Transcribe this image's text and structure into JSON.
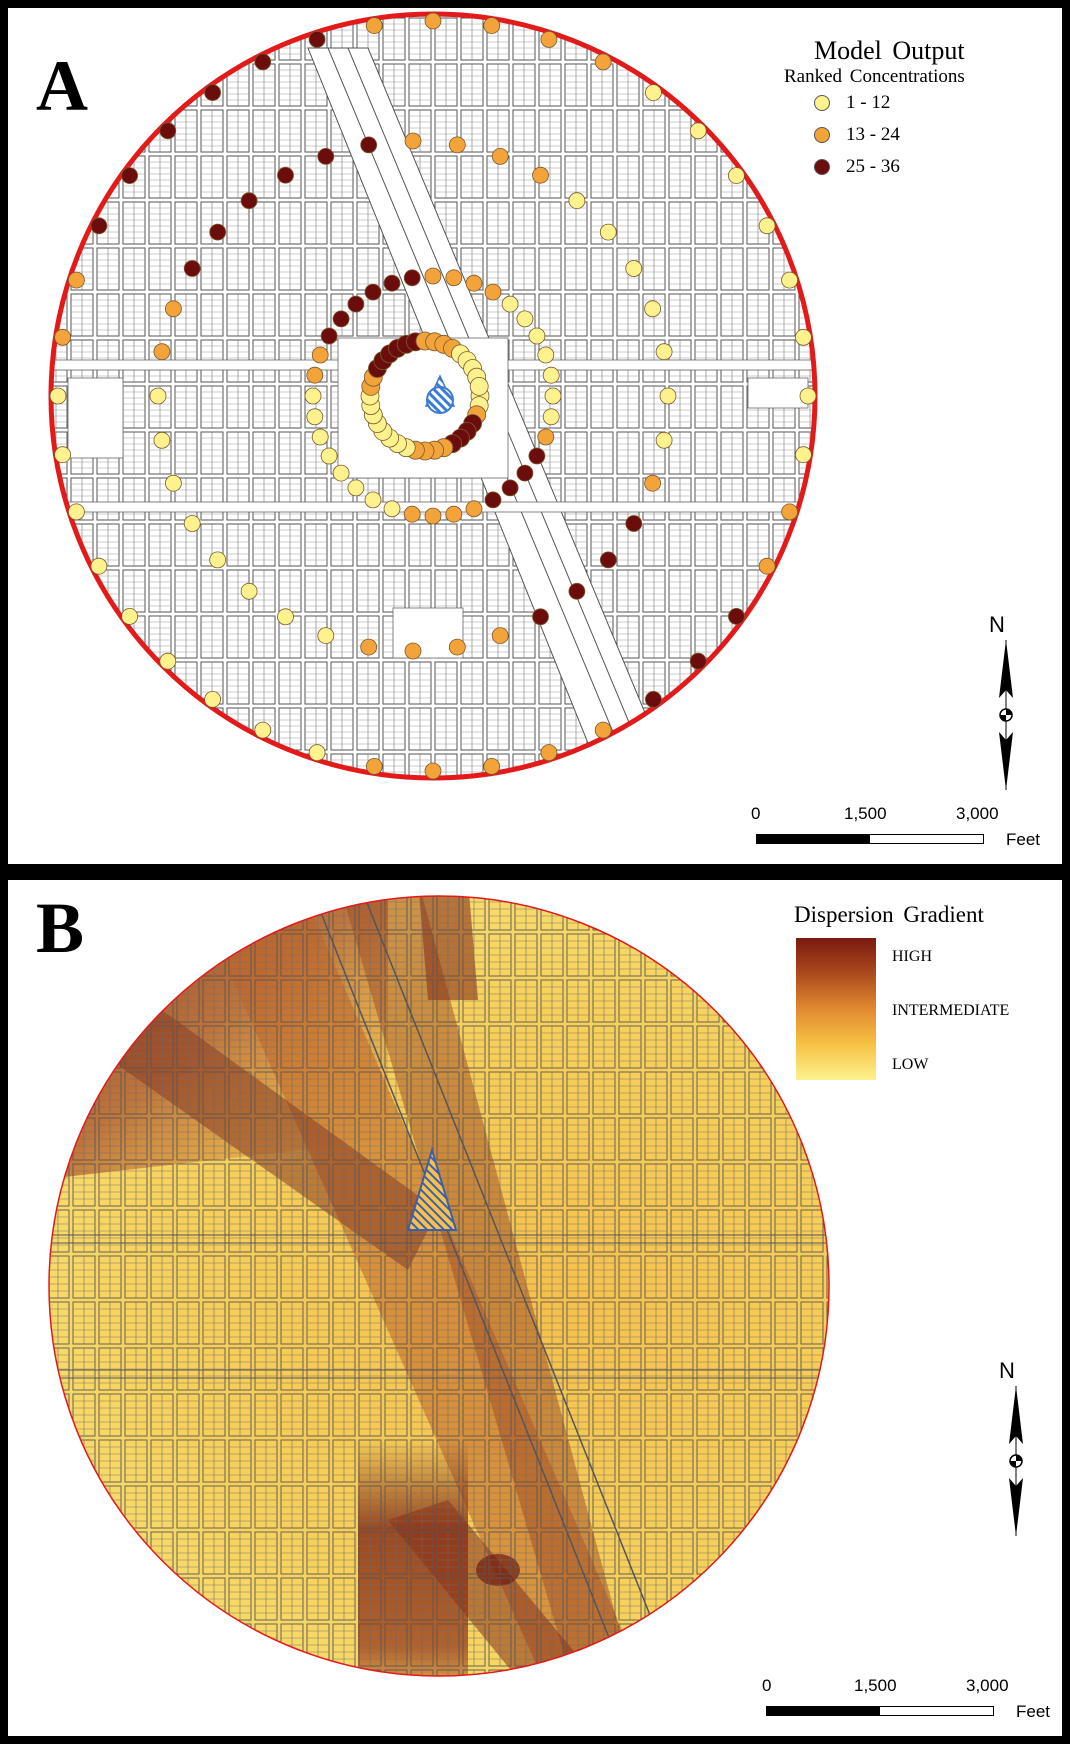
{
  "panel_a": {
    "letter": "A",
    "legend": {
      "title": "Model Output",
      "subtitle": "Ranked Concentrations",
      "items": [
        {
          "label": "1 - 12",
          "color": "#fdf28e"
        },
        {
          "label": "13 - 24",
          "color": "#f2a33a"
        },
        {
          "label": "25 - 36",
          "color": "#6b0d0d"
        }
      ]
    },
    "scale": {
      "ticks": [
        "0",
        "1,500",
        "3,000"
      ],
      "unit": "Feet"
    },
    "north": "N",
    "colors": {
      "boundary": "#e21a1a",
      "source_fill": "#3a7bd5"
    }
  },
  "panel_b": {
    "letter": "B",
    "legend": {
      "title": "Dispersion Gradient",
      "levels": [
        "HIGH",
        "INTERMEDIATE",
        "LOW"
      ]
    },
    "scale": {
      "ticks": [
        "0",
        "1,500",
        "3,000"
      ],
      "unit": "Feet"
    },
    "north": "N",
    "colors": {
      "high": "#7a1a10",
      "intermediate": "#e08a30",
      "low": "#fdf28e"
    }
  }
}
